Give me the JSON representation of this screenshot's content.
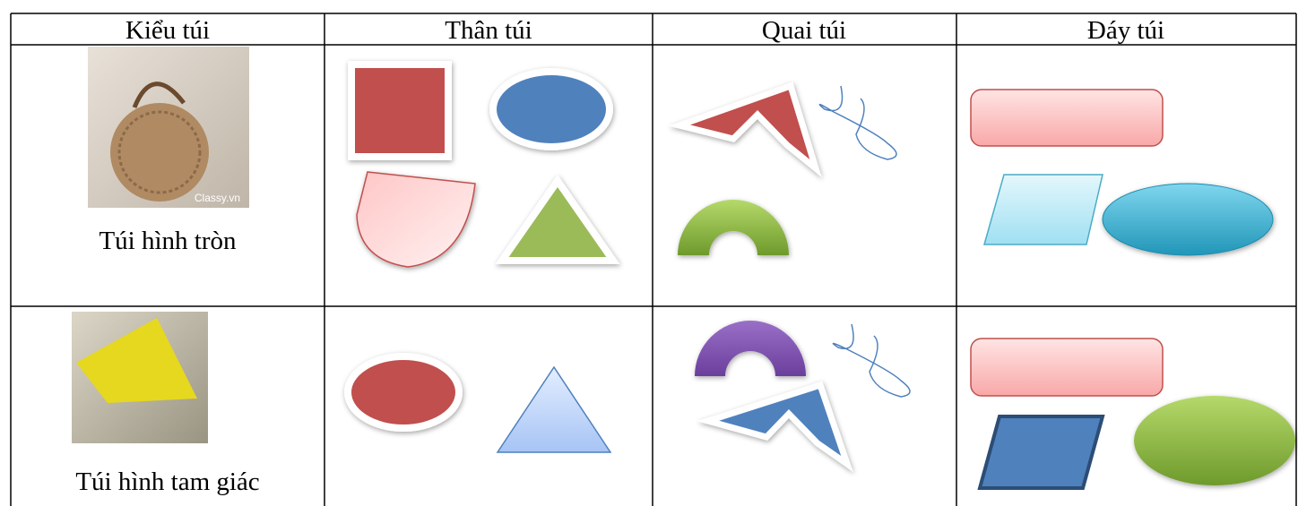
{
  "table": {
    "header": [
      "Kiểu túi",
      "Thân túi",
      "Quai túi",
      "Đáy túi"
    ],
    "rows": [
      [
        "Túi hình tròn"
      ],
      [
        "Túi hình tam giác"
      ]
    ],
    "watermark": "Classy.vn"
  }
}
